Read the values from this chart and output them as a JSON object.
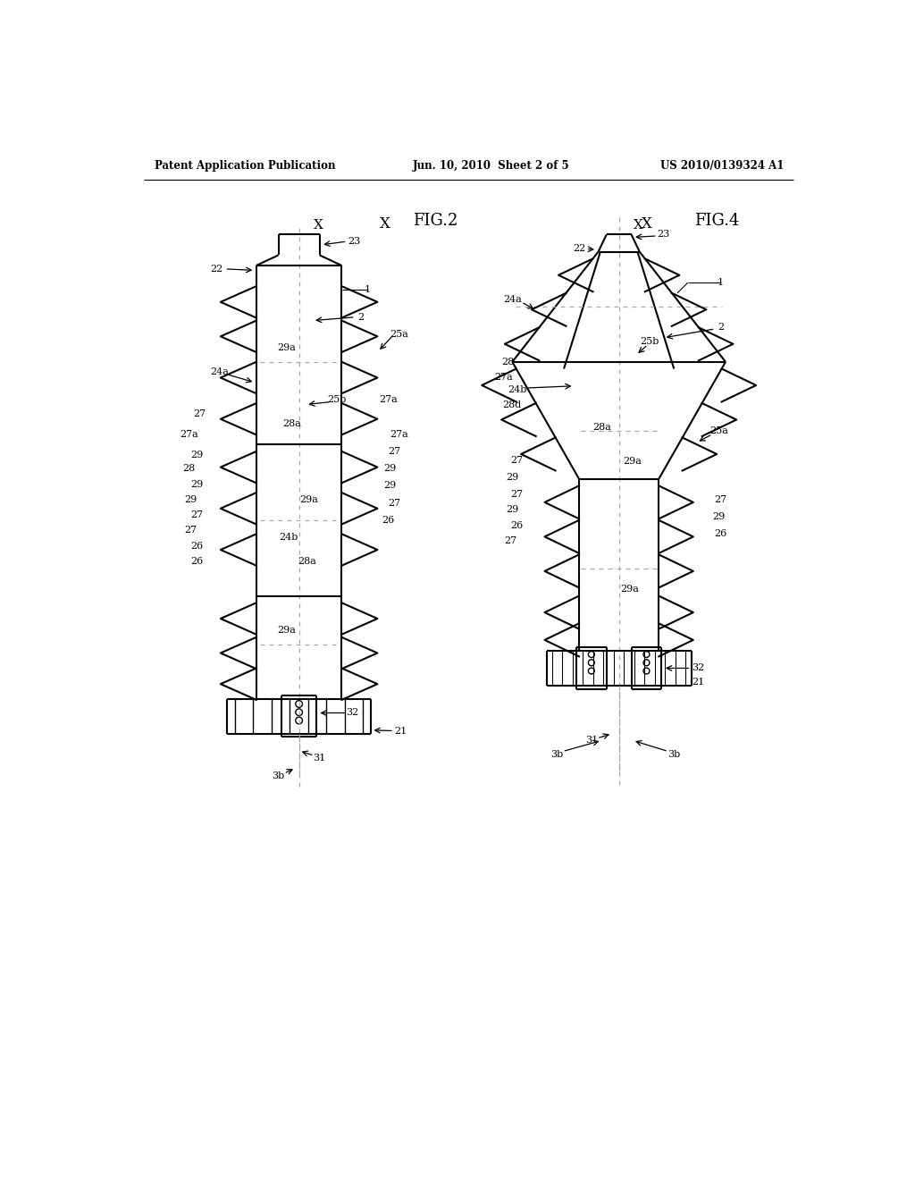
{
  "bg_color": "#ffffff",
  "header_left": "Patent Application Publication",
  "header_center": "Jun. 10, 2010  Sheet 2 of 5",
  "header_right": "US 2010/0139324 A1",
  "fig2_label": "FIG.2",
  "fig4_label": "FIG.4",
  "line_color": "#000000"
}
